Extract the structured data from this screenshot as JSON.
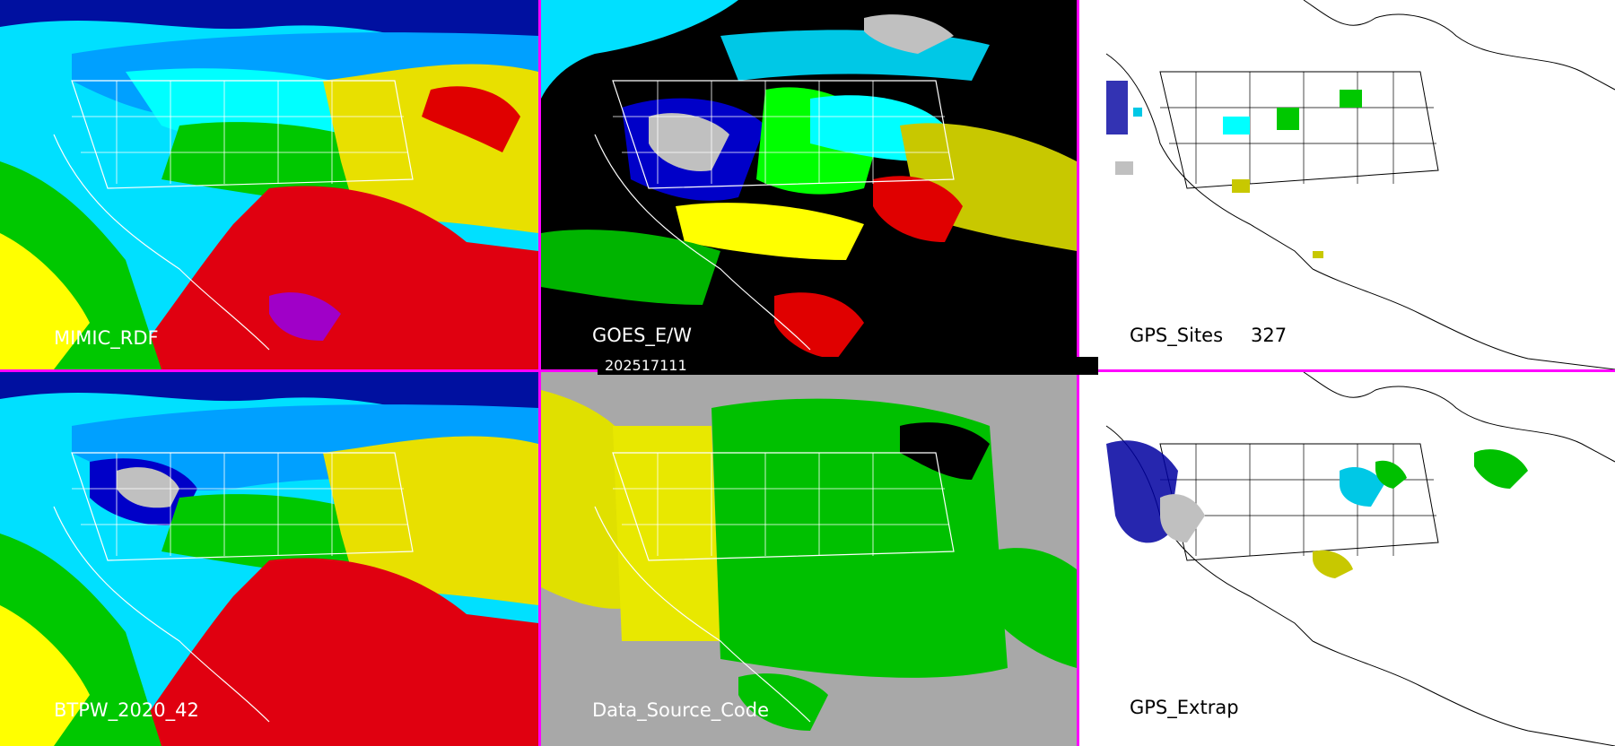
{
  "panels": {
    "mimic_rdf": {
      "label": "MIMIC_RDF"
    },
    "goes_ew": {
      "label": "GOES_E/W"
    },
    "gps_sites": {
      "label": "GPS_Sites",
      "count": "327"
    },
    "btpw": {
      "label": "BTPW_2020_42"
    },
    "data_source": {
      "label": "Data_Source_Code"
    },
    "gps_extrap": {
      "label": "GPS_Extrap"
    }
  },
  "timestamp": "202517111",
  "colors": {
    "separator": "#ff00ff",
    "palette": [
      "#000000",
      "#1a1a80",
      "#0000c8",
      "#00c8e6",
      "#00ffff",
      "#00b400",
      "#00ff00",
      "#c8c800",
      "#ffff00",
      "#e60000",
      "#a000c8",
      "#c0c0c0"
    ]
  }
}
